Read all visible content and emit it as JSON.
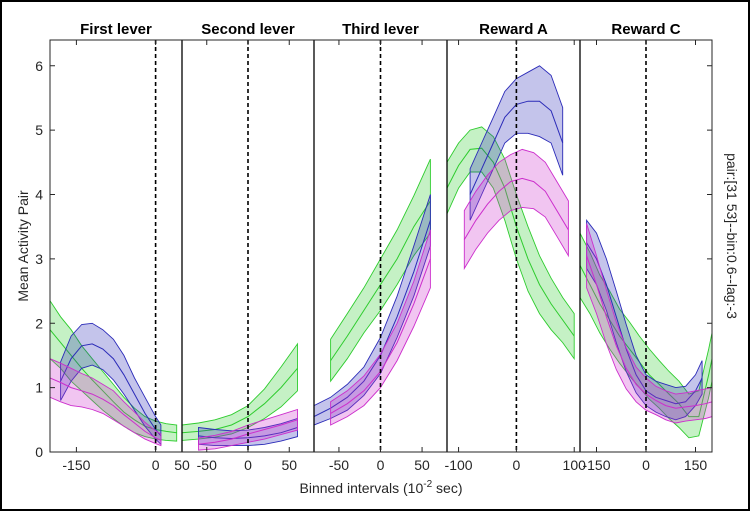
{
  "chart_data": {
    "type": "line",
    "ylabel": "Mean Activity Pair",
    "xlabel": "Binned intervals (10^-2 sec)",
    "xlabel_parts": {
      "prefix": "Binned intervals (10",
      "exponent": "-2",
      "suffix": " sec)"
    },
    "side_label": "pair:[31 53]--bin:0.6--lag:-3",
    "ylim": [
      0,
      6.4
    ],
    "yticks": [
      0,
      1,
      2,
      3,
      4,
      5,
      6
    ],
    "colors": {
      "green": "#2ecc2e",
      "blue": "#2b2bb8",
      "magenta": "#cc2ecc"
    },
    "panels": [
      {
        "title": "First lever",
        "xlim": [
          -200,
          50
        ],
        "xticks": [
          -150,
          0,
          50
        ],
        "xtick_labels": [
          "-150",
          "0",
          "50"
        ],
        "event_x": 0,
        "series": [
          {
            "color": "green",
            "x": [
              -200,
              -180,
              -160,
              -140,
              -120,
              -100,
              -80,
              -60,
              -40,
              -20,
              0,
              20,
              40
            ],
            "mean": [
              1.9,
              1.7,
              1.5,
              1.3,
              1.12,
              0.95,
              0.78,
              0.62,
              0.5,
              0.4,
              0.35,
              0.32,
              0.3
            ],
            "lower": [
              1.45,
              1.3,
              1.1,
              0.95,
              0.8,
              0.65,
              0.52,
              0.4,
              0.3,
              0.24,
              0.2,
              0.18,
              0.17
            ],
            "upper": [
              2.35,
              2.1,
              1.9,
              1.65,
              1.45,
              1.25,
              1.05,
              0.85,
              0.68,
              0.55,
              0.48,
              0.44,
              0.42
            ]
          },
          {
            "color": "blue",
            "x": [
              -180,
              -160,
              -140,
              -120,
              -100,
              -80,
              -60,
              -40,
              -20,
              0,
              10
            ],
            "mean": [
              1.1,
              1.45,
              1.65,
              1.68,
              1.6,
              1.45,
              1.2,
              0.9,
              0.6,
              0.35,
              0.25
            ],
            "lower": [
              0.8,
              1.1,
              1.3,
              1.35,
              1.28,
              1.12,
              0.9,
              0.65,
              0.4,
              0.2,
              0.12
            ],
            "upper": [
              1.4,
              1.8,
              1.98,
              2.0,
              1.9,
              1.75,
              1.5,
              1.15,
              0.85,
              0.55,
              0.42
            ]
          },
          {
            "color": "magenta",
            "x": [
              -200,
              -180,
              -160,
              -140,
              -120,
              -100,
              -80,
              -60,
              -40,
              -20,
              0,
              10
            ],
            "mean": [
              1.15,
              1.08,
              1.0,
              0.95,
              0.9,
              0.82,
              0.72,
              0.58,
              0.45,
              0.32,
              0.22,
              0.18
            ],
            "lower": [
              0.85,
              0.78,
              0.72,
              0.7,
              0.66,
              0.6,
              0.5,
              0.4,
              0.3,
              0.2,
              0.13,
              0.1
            ],
            "upper": [
              1.45,
              1.38,
              1.3,
              1.22,
              1.15,
              1.05,
              0.95,
              0.78,
              0.62,
              0.46,
              0.33,
              0.28
            ]
          }
        ]
      },
      {
        "title": "Second lever",
        "xlim": [
          -80,
          80
        ],
        "xticks": [
          -50,
          0,
          50
        ],
        "xtick_labels": [
          "-50",
          "0",
          "50"
        ],
        "event_x": 0,
        "series": [
          {
            "color": "green",
            "x": [
              -80,
              -60,
              -40,
              -20,
              0,
              20,
              40,
              60
            ],
            "mean": [
              0.3,
              0.32,
              0.35,
              0.42,
              0.55,
              0.75,
              1.0,
              1.3
            ],
            "lower": [
              0.18,
              0.2,
              0.23,
              0.28,
              0.38,
              0.52,
              0.7,
              0.95
            ],
            "upper": [
              0.42,
              0.45,
              0.5,
              0.58,
              0.72,
              0.98,
              1.32,
              1.68
            ]
          },
          {
            "color": "blue",
            "x": [
              -60,
              -40,
              -20,
              0,
              20,
              40,
              60
            ],
            "mean": [
              0.25,
              0.22,
              0.21,
              0.22,
              0.25,
              0.3,
              0.38
            ],
            "lower": [
              0.12,
              0.1,
              0.1,
              0.1,
              0.12,
              0.17,
              0.24
            ],
            "upper": [
              0.38,
              0.35,
              0.33,
              0.34,
              0.38,
              0.44,
              0.52
            ]
          },
          {
            "color": "magenta",
            "x": [
              -60,
              -40,
              -20,
              0,
              20,
              40,
              60
            ],
            "mean": [
              0.12,
              0.15,
              0.2,
              0.28,
              0.35,
              0.42,
              0.5
            ],
            "lower": [
              0.03,
              0.05,
              0.1,
              0.15,
              0.2,
              0.27,
              0.34
            ],
            "upper": [
              0.22,
              0.26,
              0.32,
              0.42,
              0.5,
              0.58,
              0.66
            ]
          }
        ]
      },
      {
        "title": "Third lever",
        "xlim": [
          -80,
          80
        ],
        "xticks": [
          -50,
          0,
          50
        ],
        "xtick_labels": [
          "-50",
          "0",
          "50"
        ],
        "event_x": 0,
        "series": [
          {
            "color": "green",
            "x": [
              -60,
              -40,
              -20,
              0,
              20,
              40,
              60
            ],
            "mean": [
              1.42,
              1.8,
              2.2,
              2.6,
              3.0,
              3.5,
              3.9
            ],
            "lower": [
              1.1,
              1.45,
              1.85,
              2.2,
              2.6,
              3.05,
              3.4
            ],
            "upper": [
              1.75,
              2.15,
              2.55,
              3.0,
              3.45,
              3.98,
              4.55
            ]
          },
          {
            "color": "blue",
            "x": [
              -80,
              -60,
              -40,
              -20,
              0,
              20,
              40,
              60
            ],
            "mean": [
              0.55,
              0.68,
              0.85,
              1.1,
              1.5,
              2.1,
              2.8,
              3.6
            ],
            "lower": [
              0.42,
              0.52,
              0.65,
              0.88,
              1.22,
              1.78,
              2.42,
              3.2
            ],
            "upper": [
              0.72,
              0.85,
              1.05,
              1.32,
              1.78,
              2.42,
              3.2,
              4.0
            ]
          },
          {
            "color": "magenta",
            "x": [
              -60,
              -40,
              -20,
              0,
              20,
              40,
              60
            ],
            "mean": [
              0.6,
              0.75,
              0.95,
              1.25,
              1.7,
              2.3,
              3.0
            ],
            "lower": [
              0.42,
              0.55,
              0.72,
              1.0,
              1.42,
              1.95,
              2.55
            ],
            "upper": [
              0.78,
              0.95,
              1.18,
              1.52,
              2.0,
              2.65,
              3.45
            ]
          }
        ]
      },
      {
        "title": "Reward A",
        "xlim": [
          -120,
          110
        ],
        "xticks": [
          -100,
          0,
          100
        ],
        "xtick_labels": [
          "-100",
          "0",
          "100"
        ],
        "event_x": 0,
        "series": [
          {
            "color": "green",
            "x": [
              -120,
              -100,
              -80,
              -60,
              -40,
              -20,
              0,
              20,
              40,
              60,
              80,
              100
            ],
            "mean": [
              4.1,
              4.45,
              4.7,
              4.72,
              4.5,
              4.1,
              3.5,
              3.0,
              2.6,
              2.3,
              2.05,
              1.8
            ],
            "lower": [
              3.7,
              4.1,
              4.35,
              4.35,
              4.1,
              3.6,
              3.0,
              2.5,
              2.15,
              1.9,
              1.7,
              1.45
            ],
            "upper": [
              4.5,
              4.8,
              5.0,
              5.05,
              4.9,
              4.55,
              4.0,
              3.5,
              3.05,
              2.7,
              2.4,
              2.15
            ]
          },
          {
            "color": "blue",
            "x": [
              -80,
              -60,
              -40,
              -20,
              0,
              20,
              40,
              60,
              80
            ],
            "mean": [
              4.0,
              4.4,
              4.8,
              5.2,
              5.4,
              5.45,
              5.45,
              5.3,
              4.8
            ],
            "lower": [
              3.6,
              4.0,
              4.4,
              4.8,
              4.95,
              4.95,
              4.9,
              4.8,
              4.3
            ],
            "upper": [
              4.4,
              4.8,
              5.2,
              5.6,
              5.8,
              5.9,
              6.0,
              5.85,
              5.35
            ]
          },
          {
            "color": "magenta",
            "x": [
              -90,
              -70,
              -50,
              -30,
              -10,
              10,
              30,
              50,
              70,
              90
            ],
            "mean": [
              3.3,
              3.6,
              3.85,
              4.05,
              4.2,
              4.25,
              4.2,
              4.05,
              3.75,
              3.45
            ],
            "lower": [
              2.85,
              3.15,
              3.4,
              3.6,
              3.75,
              3.8,
              3.78,
              3.65,
              3.35,
              3.05
            ],
            "upper": [
              3.75,
              4.05,
              4.3,
              4.5,
              4.62,
              4.7,
              4.65,
              4.5,
              4.2,
              3.9
            ]
          }
        ]
      },
      {
        "title": "Reward C",
        "xlim": [
          -200,
          200
        ],
        "xticks": [
          -150,
          0,
          150
        ],
        "xtick_labels": [
          "-150",
          "0",
          "150"
        ],
        "event_x": 0,
        "series": [
          {
            "color": "green",
            "x": [
              -200,
              -170,
              -140,
              -110,
              -80,
              -50,
              -20,
              10,
              40,
              70,
              100,
              130,
              160,
              190,
              200
            ],
            "mean": [
              2.9,
              2.6,
              2.3,
              2.05,
              1.8,
              1.6,
              1.4,
              1.2,
              1.05,
              0.9,
              0.75,
              0.55,
              0.55,
              1.2,
              1.45
            ],
            "lower": [
              2.4,
              2.15,
              1.85,
              1.6,
              1.38,
              1.18,
              1.0,
              0.82,
              0.68,
              0.52,
              0.38,
              0.22,
              0.25,
              0.85,
              1.1
            ],
            "upper": [
              3.4,
              3.1,
              2.75,
              2.5,
              2.22,
              2.02,
              1.8,
              1.6,
              1.42,
              1.25,
              1.1,
              0.9,
              0.95,
              1.6,
              1.85
            ]
          },
          {
            "color": "blue",
            "x": [
              -180,
              -150,
              -120,
              -90,
              -60,
              -30,
              0,
              30,
              60,
              90,
              120,
              150,
              170
            ],
            "mean": [
              3.25,
              3.0,
              2.6,
              2.1,
              1.6,
              1.2,
              0.95,
              0.85,
              0.8,
              0.75,
              0.78,
              0.95,
              1.15
            ],
            "lower": [
              2.85,
              2.6,
              2.2,
              1.7,
              1.25,
              0.92,
              0.72,
              0.62,
              0.55,
              0.5,
              0.55,
              0.72,
              0.9
            ],
            "upper": [
              3.6,
              3.4,
              3.0,
              2.5,
              1.98,
              1.5,
              1.2,
              1.1,
              1.05,
              1.0,
              1.02,
              1.2,
              1.42
            ]
          },
          {
            "color": "magenta",
            "x": [
              -180,
              -150,
              -120,
              -90,
              -60,
              -30,
              0,
              30,
              60,
              90,
              120,
              150,
              180,
              200
            ],
            "mean": [
              3.05,
              2.6,
              2.1,
              1.65,
              1.3,
              1.05,
              0.9,
              0.8,
              0.72,
              0.68,
              0.7,
              0.72,
              0.75,
              0.78
            ],
            "lower": [
              2.55,
              2.15,
              1.68,
              1.28,
              0.98,
              0.78,
              0.65,
              0.58,
              0.5,
              0.45,
              0.48,
              0.5,
              0.52,
              0.55
            ],
            "upper": [
              3.55,
              3.05,
              2.52,
              2.02,
              1.62,
              1.32,
              1.15,
              1.02,
              0.95,
              0.9,
              0.92,
              0.95,
              0.98,
              1.0
            ]
          }
        ]
      }
    ]
  }
}
